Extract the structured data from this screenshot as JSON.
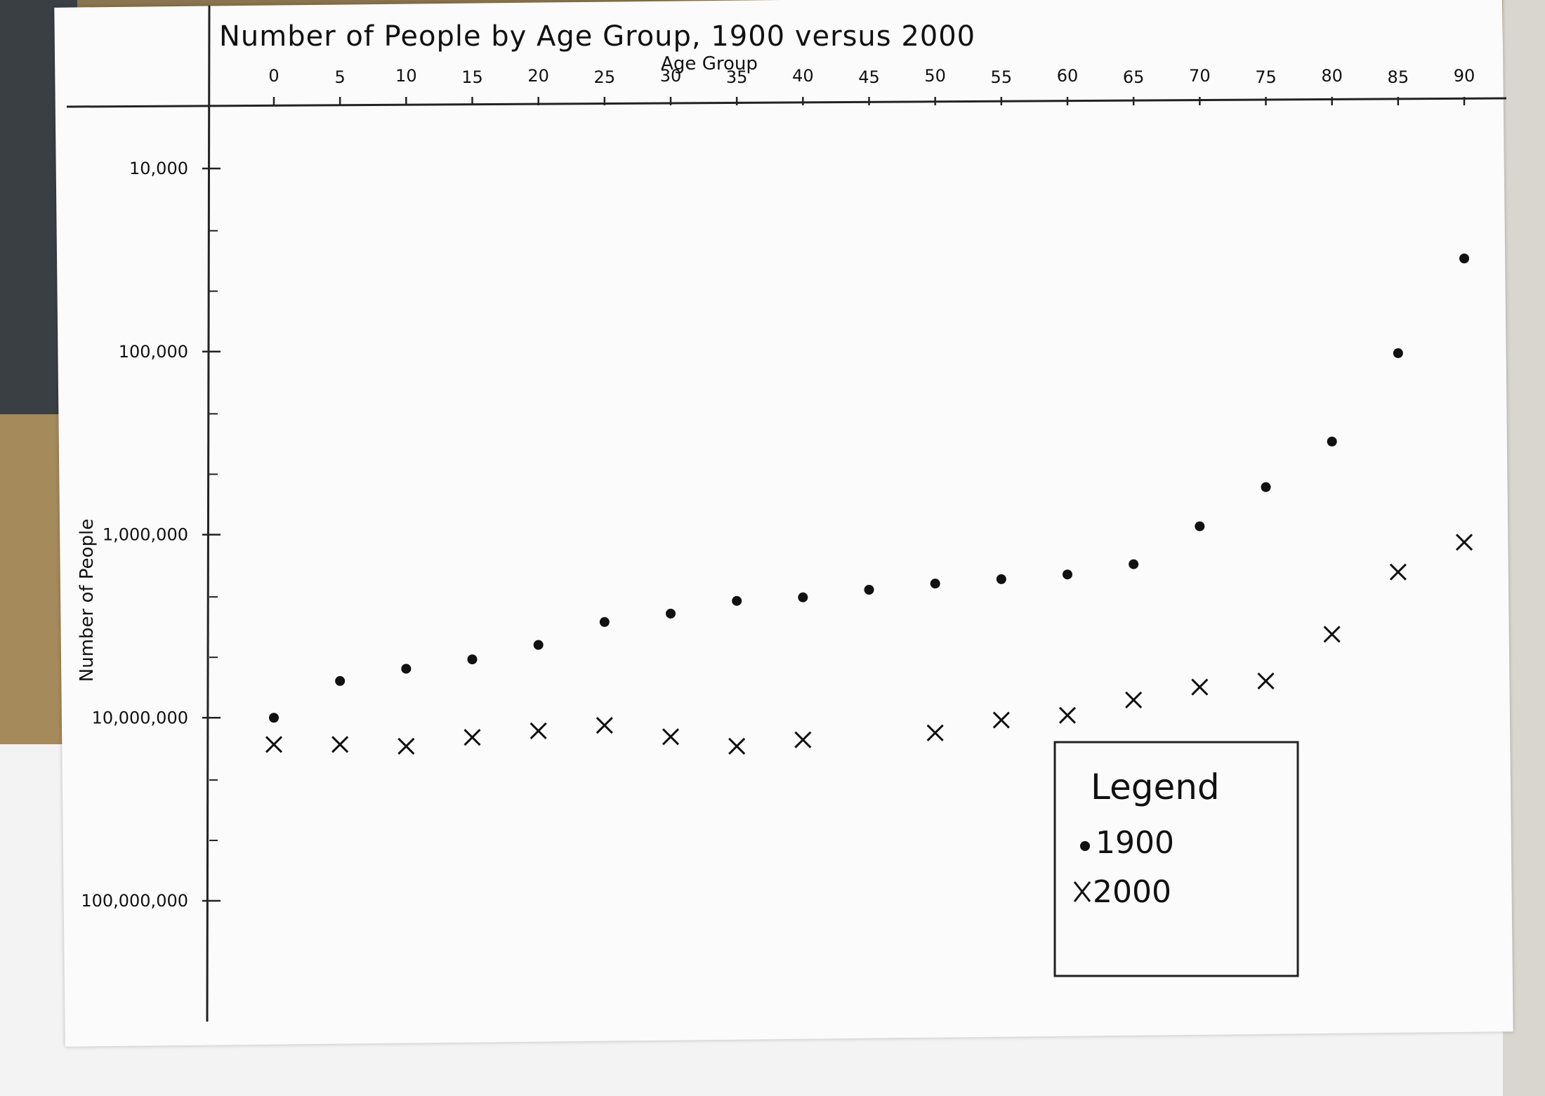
{
  "chart_data": {
    "type": "scatter",
    "title": "Number of People by Age Group, 1900 versus 2000",
    "xlabel": "Age Group",
    "ylabel": "Number of People",
    "x_ticks": [
      "0",
      "5",
      "10",
      "15",
      "20",
      "25",
      "30",
      "35",
      "40",
      "45",
      "50",
      "55",
      "60",
      "65",
      "70",
      "75",
      "80",
      "85",
      "90"
    ],
    "xlim": [
      0,
      90
    ],
    "y_scale": "log",
    "y_inverted": true,
    "ylim": [
      10000,
      100000000
    ],
    "y_ticks": [
      {
        "value": 10000,
        "label": "10,000"
      },
      {
        "value": 100000,
        "label": "100,000"
      },
      {
        "value": 1000000,
        "label": "1,000,000"
      },
      {
        "value": 10000000,
        "label": "10,000,000"
      },
      {
        "value": 100000000,
        "label": "100,000,000"
      }
    ],
    "legend": {
      "title": "Legend",
      "position": "bottom-right"
    },
    "series": [
      {
        "name": "1900",
        "marker": "dot",
        "points": [
          {
            "x": 0,
            "y": 10000000
          },
          {
            "x": 5,
            "y": 6300000
          },
          {
            "x": 10,
            "y": 5400000
          },
          {
            "x": 15,
            "y": 4800000
          },
          {
            "x": 20,
            "y": 4000000
          },
          {
            "x": 25,
            "y": 3000000
          },
          {
            "x": 30,
            "y": 2700000
          },
          {
            "x": 35,
            "y": 2300000
          },
          {
            "x": 40,
            "y": 2200000
          },
          {
            "x": 45,
            "y": 2000000
          },
          {
            "x": 50,
            "y": 1850000
          },
          {
            "x": 55,
            "y": 1750000
          },
          {
            "x": 60,
            "y": 1650000
          },
          {
            "x": 65,
            "y": 1450000
          },
          {
            "x": 70,
            "y": 900000
          },
          {
            "x": 75,
            "y": 550000
          },
          {
            "x": 80,
            "y": 310000
          },
          {
            "x": 85,
            "y": 102000
          },
          {
            "x": 90,
            "y": 31000
          }
        ]
      },
      {
        "name": "2000",
        "marker": "x",
        "points": [
          {
            "x": 0,
            "y": 14000000
          },
          {
            "x": 5,
            "y": 14000000
          },
          {
            "x": 10,
            "y": 14300000
          },
          {
            "x": 15,
            "y": 12800000
          },
          {
            "x": 20,
            "y": 11800000
          },
          {
            "x": 25,
            "y": 11000000
          },
          {
            "x": 30,
            "y": 12700000
          },
          {
            "x": 35,
            "y": 14300000
          },
          {
            "x": 40,
            "y": 13200000
          },
          {
            "x": 50,
            "y": 12100000
          },
          {
            "x": 55,
            "y": 10300000
          },
          {
            "x": 60,
            "y": 9700000
          },
          {
            "x": 65,
            "y": 8000000
          },
          {
            "x": 70,
            "y": 6800000
          },
          {
            "x": 75,
            "y": 6300000
          },
          {
            "x": 80,
            "y": 3500000
          },
          {
            "x": 85,
            "y": 1600000
          },
          {
            "x": 90,
            "y": 1100000
          }
        ]
      }
    ]
  }
}
